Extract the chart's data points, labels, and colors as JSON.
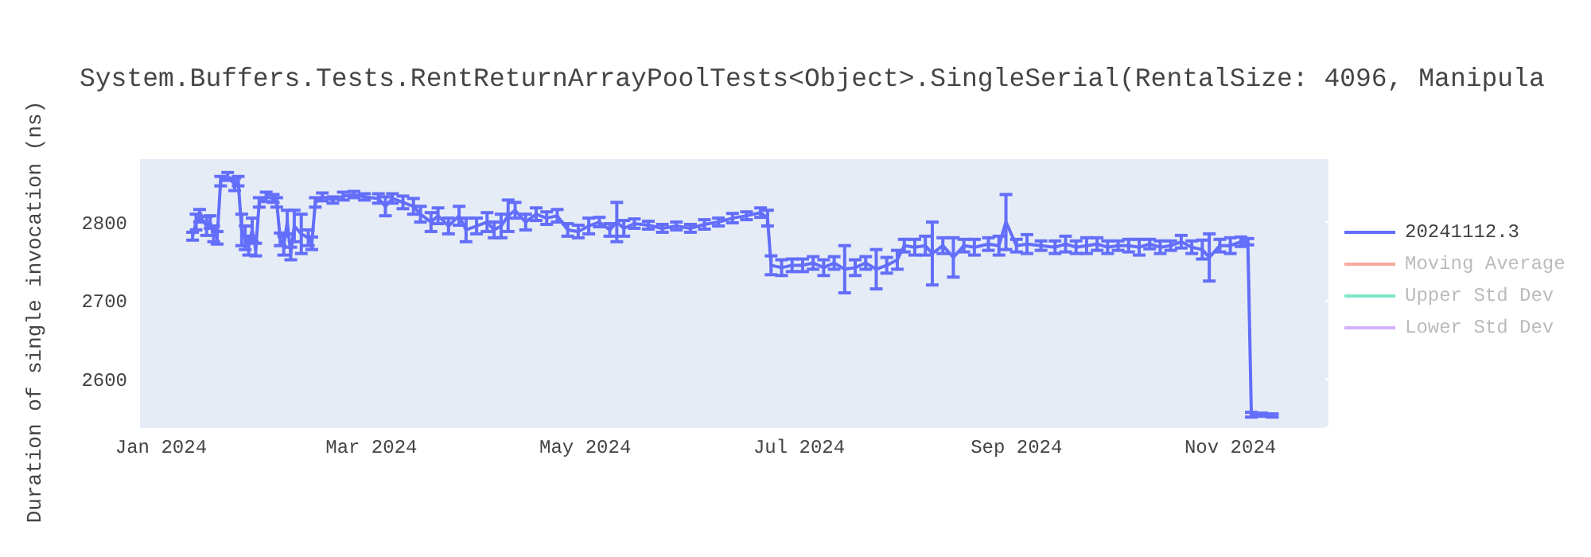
{
  "chart_data": {
    "type": "line",
    "title": "System.Buffers.Tests.RentReturnArrayPoolTests<Object>.SingleSerial(RentalSize: 4096, Manipula",
    "ylabel": "Duration of single invocation (ns)",
    "x": [
      "2024-01-10",
      "2024-01-11",
      "2024-01-12",
      "2024-01-14",
      "2024-01-15",
      "2024-01-16",
      "2024-01-17",
      "2024-01-18",
      "2024-01-20",
      "2024-01-22",
      "2024-01-23",
      "2024-01-24",
      "2024-01-25",
      "2024-01-26",
      "2024-01-27",
      "2024-01-28",
      "2024-01-29",
      "2024-01-31",
      "2024-02-02",
      "2024-02-03",
      "2024-02-04",
      "2024-02-05",
      "2024-02-06",
      "2024-02-07",
      "2024-02-08",
      "2024-02-10",
      "2024-02-12",
      "2024-02-13",
      "2024-02-14",
      "2024-02-16",
      "2024-02-19",
      "2024-02-22",
      "2024-02-25",
      "2024-02-28",
      "2024-03-03",
      "2024-03-05",
      "2024-03-07",
      "2024-03-10",
      "2024-03-13",
      "2024-03-15",
      "2024-03-18",
      "2024-03-20",
      "2024-03-23",
      "2024-03-26",
      "2024-03-28",
      "2024-03-31",
      "2024-04-03",
      "2024-04-05",
      "2024-04-07",
      "2024-04-09",
      "2024-04-11",
      "2024-04-14",
      "2024-04-17",
      "2024-04-20",
      "2024-04-23",
      "2024-04-26",
      "2024-04-29",
      "2024-05-02",
      "2024-05-05",
      "2024-05-08",
      "2024-05-10",
      "2024-05-12",
      "2024-05-15",
      "2024-05-19",
      "2024-05-23",
      "2024-05-27",
      "2024-05-31",
      "2024-06-04",
      "2024-06-08",
      "2024-06-12",
      "2024-06-16",
      "2024-06-20",
      "2024-06-22",
      "2024-06-23",
      "2024-06-26",
      "2024-06-29",
      "2024-07-02",
      "2024-07-05",
      "2024-07-08",
      "2024-07-11",
      "2024-07-14",
      "2024-07-17",
      "2024-07-20",
      "2024-07-23",
      "2024-07-26",
      "2024-07-29",
      "2024-07-31",
      "2024-08-03",
      "2024-08-06",
      "2024-08-08",
      "2024-08-11",
      "2024-08-14",
      "2024-08-17",
      "2024-08-20",
      "2024-08-24",
      "2024-08-27",
      "2024-08-29",
      "2024-09-01",
      "2024-09-04",
      "2024-09-08",
      "2024-09-12",
      "2024-09-15",
      "2024-09-18",
      "2024-09-21",
      "2024-09-24",
      "2024-09-27",
      "2024-09-30",
      "2024-10-03",
      "2024-10-06",
      "2024-10-09",
      "2024-10-12",
      "2024-10-15",
      "2024-10-18",
      "2024-10-21",
      "2024-10-24",
      "2024-10-26",
      "2024-10-29",
      "2024-11-01",
      "2024-11-04",
      "2024-11-06",
      "2024-11-07",
      "2024-11-10",
      "2024-11-13"
    ],
    "series": [
      {
        "name": "20241112.3",
        "color": "#636efa",
        "values": [
          2782,
          2800,
          2808,
          2795,
          2800,
          2785,
          2780,
          2852,
          2858,
          2848,
          2852,
          2790,
          2780,
          2770,
          2790,
          2765,
          2825,
          2832,
          2830,
          2825,
          2778,
          2770,
          2800,
          2760,
          2795,
          2785,
          2780,
          2773,
          2825,
          2832,
          2828,
          2833,
          2835,
          2832,
          2830,
          2820,
          2830,
          2825,
          2820,
          2810,
          2800,
          2808,
          2795,
          2808,
          2790,
          2795,
          2800,
          2790,
          2795,
          2808,
          2815,
          2800,
          2810,
          2805,
          2808,
          2790,
          2788,
          2795,
          2800,
          2790,
          2800,
          2792,
          2798,
          2796,
          2792,
          2795,
          2792,
          2797,
          2800,
          2805,
          2808,
          2812,
          2805,
          2745,
          2742,
          2745,
          2745,
          2748,
          2742,
          2748,
          2740,
          2742,
          2748,
          2740,
          2745,
          2752,
          2770,
          2768,
          2770,
          2760,
          2770,
          2755,
          2770,
          2768,
          2772,
          2770,
          2800,
          2770,
          2772,
          2770,
          2768,
          2772,
          2768,
          2770,
          2772,
          2768,
          2770,
          2770,
          2768,
          2772,
          2768,
          2770,
          2775,
          2768,
          2765,
          2755,
          2770,
          2770,
          2775,
          2775,
          2555,
          2555,
          2554
        ],
        "errors": [
          5,
          10,
          8,
          12,
          8,
          10,
          8,
          6,
          5,
          8,
          6,
          20,
          15,
          12,
          15,
          8,
          6,
          6,
          5,
          6,
          8,
          12,
          15,
          8,
          20,
          25,
          10,
          8,
          6,
          5,
          4,
          5,
          4,
          4,
          6,
          12,
          6,
          8,
          10,
          10,
          12,
          10,
          10,
          12,
          15,
          10,
          12,
          10,
          15,
          20,
          10,
          10,
          8,
          8,
          8,
          8,
          8,
          10,
          6,
          8,
          25,
          10,
          6,
          5,
          5,
          5,
          5,
          6,
          5,
          6,
          5,
          6,
          10,
          12,
          10,
          8,
          8,
          8,
          10,
          8,
          30,
          10,
          8,
          25,
          10,
          12,
          8,
          10,
          12,
          40,
          10,
          25,
          8,
          10,
          8,
          12,
          35,
          8,
          12,
          6,
          8,
          10,
          8,
          10,
          8,
          8,
          6,
          8,
          10,
          6,
          8,
          6,
          8,
          8,
          12,
          30,
          8,
          10,
          6,
          4,
          3,
          2,
          2
        ]
      },
      {
        "name": "Moving Average",
        "color": "#f7aa9d",
        "values": [
          null,
          null,
          null,
          null,
          null,
          null,
          null,
          null,
          null,
          null,
          null,
          null,
          null,
          null,
          null,
          null,
          null,
          null,
          null,
          null,
          null,
          null,
          null,
          null,
          null,
          null,
          null,
          null,
          null,
          null,
          null,
          null,
          null,
          null,
          null,
          null,
          null,
          null,
          null,
          null,
          null,
          null,
          null,
          null,
          null,
          null,
          null,
          null,
          null,
          null,
          null,
          null,
          null,
          null,
          null,
          null,
          null,
          null,
          null,
          null,
          null,
          null,
          null,
          null,
          null,
          null,
          null,
          null,
          null,
          null,
          null,
          null,
          null,
          null,
          null,
          null,
          null,
          null,
          null,
          null,
          null,
          null,
          null,
          null,
          null,
          null,
          null,
          null,
          null,
          null,
          null,
          null,
          null,
          null,
          null,
          null,
          null,
          null,
          null,
          null,
          null,
          null,
          null,
          null,
          null,
          null,
          null,
          null,
          null,
          null,
          null,
          null,
          null,
          null,
          null,
          null,
          null,
          null,
          null,
          null,
          null,
          null,
          null
        ]
      },
      {
        "name": "Upper Std Dev",
        "color": "#80e5ca",
        "values": [
          null,
          null,
          null,
          null,
          null,
          null,
          null,
          null,
          null,
          null,
          null,
          null,
          null,
          null,
          null,
          null,
          null,
          null,
          null,
          null,
          null,
          null,
          null,
          null,
          null,
          null,
          null,
          null,
          null,
          null,
          null,
          null,
          null,
          null,
          null,
          null,
          null,
          null,
          null,
          null,
          null,
          null,
          null,
          null,
          null,
          null,
          null,
          null,
          null,
          null,
          null,
          null,
          null,
          null,
          null,
          null,
          null,
          null,
          null,
          null,
          null,
          null,
          null,
          null,
          null,
          null,
          null,
          null,
          null,
          null,
          null,
          null,
          null,
          null,
          null,
          null,
          null,
          null,
          null,
          null,
          null,
          null,
          null,
          null,
          null,
          null,
          null,
          null,
          null,
          null,
          null,
          null,
          null,
          null,
          null,
          null,
          null,
          null,
          null,
          null,
          null,
          null,
          null,
          null,
          null,
          null,
          null,
          null,
          null,
          null,
          null,
          null,
          null,
          null,
          null,
          null,
          null,
          null,
          null,
          null,
          null,
          null,
          null
        ]
      },
      {
        "name": "Lower Std Dev",
        "color": "#d5b1fc",
        "values": [
          null,
          null,
          null,
          null,
          null,
          null,
          null,
          null,
          null,
          null,
          null,
          null,
          null,
          null,
          null,
          null,
          null,
          null,
          null,
          null,
          null,
          null,
          null,
          null,
          null,
          null,
          null,
          null,
          null,
          null,
          null,
          null,
          null,
          null,
          null,
          null,
          null,
          null,
          null,
          null,
          null,
          null,
          null,
          null,
          null,
          null,
          null,
          null,
          null,
          null,
          null,
          null,
          null,
          null,
          null,
          null,
          null,
          null,
          null,
          null,
          null,
          null,
          null,
          null,
          null,
          null,
          null,
          null,
          null,
          null,
          null,
          null,
          null,
          null,
          null,
          null,
          null,
          null,
          null,
          null,
          null,
          null,
          null,
          null,
          null,
          null,
          null,
          null,
          null,
          null,
          null,
          null,
          null,
          null,
          null,
          null,
          null,
          null,
          null,
          null,
          null,
          null,
          null,
          null,
          null,
          null,
          null,
          null,
          null,
          null,
          null,
          null,
          null,
          null,
          null,
          null,
          null,
          null,
          null,
          null,
          null,
          null,
          null
        ]
      }
    ],
    "xlim": [
      "2023-12-26",
      "2024-11-29"
    ],
    "xticks": [
      {
        "value": "2024-01-01",
        "label": "Jan 2024"
      },
      {
        "value": "2024-03-01",
        "label": "Mar 2024"
      },
      {
        "value": "2024-05-01",
        "label": "May 2024"
      },
      {
        "value": "2024-07-01",
        "label": "Jul 2024"
      },
      {
        "value": "2024-09-01",
        "label": "Sep 2024"
      },
      {
        "value": "2024-11-01",
        "label": "Nov 2024"
      }
    ],
    "ylim": [
      2540,
      2880
    ],
    "yticks": [
      2600,
      2700,
      2800
    ],
    "grid": true,
    "legend": "top right"
  }
}
